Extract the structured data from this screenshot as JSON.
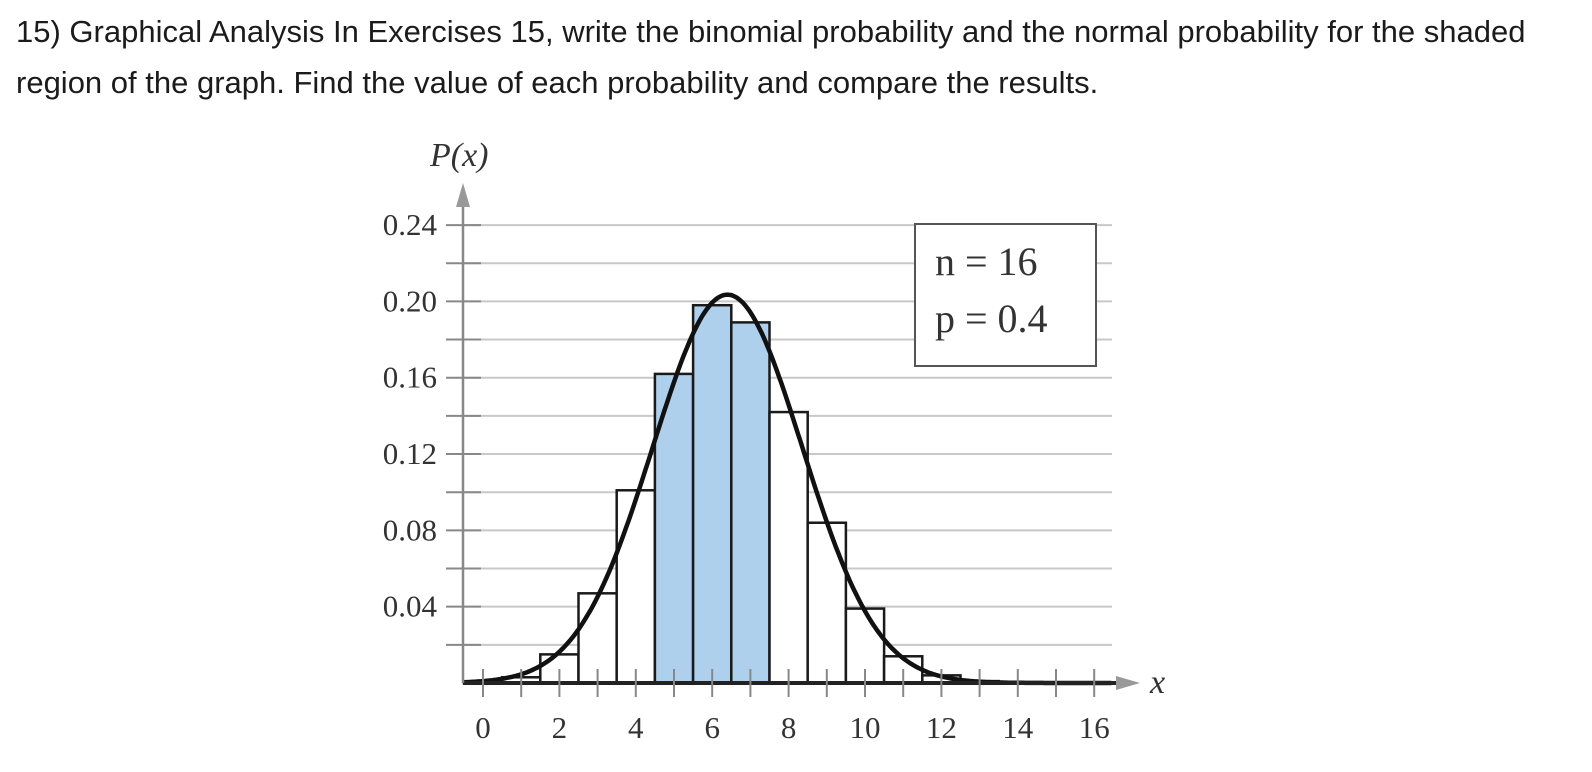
{
  "question": {
    "text": "15) Graphical Analysis In Exercises 15, write the binomial probability and the normal probability for the shaded region of the graph. Find the value of each probability and compare the results."
  },
  "chart_data": {
    "type": "bar",
    "ylabel": "P(x)",
    "xlabel": "x",
    "x_ticks": [
      0,
      2,
      4,
      6,
      8,
      10,
      12,
      14,
      16
    ],
    "y_ticks": [
      "0.04",
      "0.08",
      "0.12",
      "0.16",
      "0.20",
      "0.24"
    ],
    "xlim": [
      -0.5,
      16.5
    ],
    "ylim": [
      0,
      0.24
    ],
    "grid": true,
    "legend": {
      "n_label": "n = 16",
      "p_label": "p = 0.4",
      "placement": "top-right"
    },
    "n": 16,
    "p": 0.4,
    "x": [
      0,
      1,
      2,
      3,
      4,
      5,
      6,
      7,
      8,
      9,
      10,
      11,
      12,
      13,
      14,
      15,
      16
    ],
    "values": [
      0.0003,
      0.003,
      0.015,
      0.047,
      0.101,
      0.162,
      0.198,
      0.189,
      0.142,
      0.084,
      0.039,
      0.014,
      0.004,
      0.001,
      0.0001,
      0.0,
      0.0
    ],
    "shaded_x": [
      5,
      6,
      7
    ],
    "normal_curve": {
      "mean": 6.4,
      "sd": 1.96
    },
    "colors": {
      "shaded_fill": "#aed0ec",
      "bar_stroke": "#1a1a1a",
      "grid": "#c8c8c8",
      "axis": "#888888"
    }
  }
}
